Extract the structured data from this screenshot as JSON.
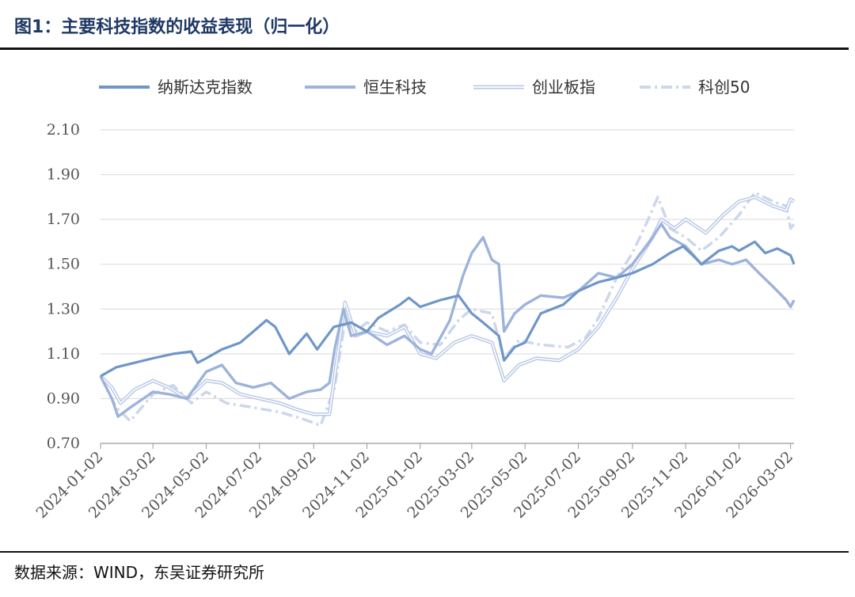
{
  "page": {
    "title": "图1：主要科技指数的收益表现（归一化）",
    "source": "数据来源：WIND，东吴证券研究所"
  },
  "chart_data": {
    "type": "line",
    "title": "图1：主要科技指数的收益表现（归一化）",
    "xlabel": "",
    "ylabel": "",
    "ylim": [
      0.7,
      2.1
    ],
    "yticks": [
      "0.70",
      "0.90",
      "1.10",
      "1.30",
      "1.50",
      "1.70",
      "1.90",
      "2.10"
    ],
    "xlim": [
      "2024-01-02",
      "2026-03-06"
    ],
    "xticks": [
      "2024-01-02",
      "2024-03-02",
      "2024-05-02",
      "2024-07-02",
      "2024-09-02",
      "2024-11-02",
      "2025-01-02",
      "2025-03-02",
      "2025-05-02",
      "2025-07-02",
      "2025-09-02",
      "2025-11-02",
      "2026-01-02",
      "2026-03-02"
    ],
    "grid": "horizontal",
    "legend_position": "top",
    "series": [
      {
        "name": "纳斯达克指数",
        "color": "#6f96c8",
        "style": "solid",
        "points": [
          [
            "2024-01-02",
            1.0
          ],
          [
            "2024-01-20",
            1.04
          ],
          [
            "2024-02-10",
            1.06
          ],
          [
            "2024-03-02",
            1.08
          ],
          [
            "2024-03-25",
            1.1
          ],
          [
            "2024-04-15",
            1.11
          ],
          [
            "2024-04-22",
            1.06
          ],
          [
            "2024-05-02",
            1.08
          ],
          [
            "2024-05-20",
            1.12
          ],
          [
            "2024-06-10",
            1.15
          ],
          [
            "2024-06-25",
            1.2
          ],
          [
            "2024-07-10",
            1.25
          ],
          [
            "2024-07-20",
            1.22
          ],
          [
            "2024-08-05",
            1.1
          ],
          [
            "2024-08-25",
            1.19
          ],
          [
            "2024-09-06",
            1.12
          ],
          [
            "2024-09-25",
            1.22
          ],
          [
            "2024-10-15",
            1.24
          ],
          [
            "2024-11-02",
            1.2
          ],
          [
            "2024-11-15",
            1.26
          ],
          [
            "2024-12-10",
            1.32
          ],
          [
            "2024-12-20",
            1.35
          ],
          [
            "2025-01-02",
            1.31
          ],
          [
            "2025-01-25",
            1.34
          ],
          [
            "2025-02-15",
            1.36
          ],
          [
            "2025-03-02",
            1.28
          ],
          [
            "2025-03-15",
            1.24
          ],
          [
            "2025-04-02",
            1.18
          ],
          [
            "2025-04-08",
            1.07
          ],
          [
            "2025-04-20",
            1.13
          ],
          [
            "2025-05-02",
            1.15
          ],
          [
            "2025-05-20",
            1.28
          ],
          [
            "2025-06-15",
            1.32
          ],
          [
            "2025-07-02",
            1.38
          ],
          [
            "2025-07-25",
            1.42
          ],
          [
            "2025-08-15",
            1.44
          ],
          [
            "2025-09-02",
            1.46
          ],
          [
            "2025-09-25",
            1.5
          ],
          [
            "2025-10-15",
            1.55
          ],
          [
            "2025-10-30",
            1.58
          ],
          [
            "2025-11-10",
            1.54
          ],
          [
            "2025-11-20",
            1.5
          ],
          [
            "2025-12-10",
            1.56
          ],
          [
            "2025-12-25",
            1.58
          ],
          [
            "2026-01-02",
            1.56
          ],
          [
            "2026-01-20",
            1.6
          ],
          [
            "2026-02-01",
            1.55
          ],
          [
            "2026-02-15",
            1.57
          ],
          [
            "2026-03-02",
            1.54
          ],
          [
            "2026-03-06",
            1.5
          ]
        ]
      },
      {
        "name": "恒生科技",
        "color": "#9db3db",
        "style": "solid",
        "points": [
          [
            "2024-01-02",
            1.0
          ],
          [
            "2024-01-15",
            0.9
          ],
          [
            "2024-01-22",
            0.82
          ],
          [
            "2024-02-05",
            0.86
          ],
          [
            "2024-02-20",
            0.9
          ],
          [
            "2024-03-02",
            0.93
          ],
          [
            "2024-03-20",
            0.92
          ],
          [
            "2024-04-10",
            0.9
          ],
          [
            "2024-05-02",
            1.02
          ],
          [
            "2024-05-20",
            1.05
          ],
          [
            "2024-06-05",
            0.97
          ],
          [
            "2024-06-25",
            0.95
          ],
          [
            "2024-07-15",
            0.97
          ],
          [
            "2024-08-05",
            0.9
          ],
          [
            "2024-08-25",
            0.93
          ],
          [
            "2024-09-10",
            0.94
          ],
          [
            "2024-09-20",
            0.97
          ],
          [
            "2024-09-26",
            1.12
          ],
          [
            "2024-10-06",
            1.3
          ],
          [
            "2024-10-15",
            1.18
          ],
          [
            "2024-11-02",
            1.2
          ],
          [
            "2024-11-25",
            1.14
          ],
          [
            "2024-12-15",
            1.18
          ],
          [
            "2025-01-02",
            1.12
          ],
          [
            "2025-01-15",
            1.1
          ],
          [
            "2025-02-05",
            1.25
          ],
          [
            "2025-02-20",
            1.45
          ],
          [
            "2025-03-02",
            1.55
          ],
          [
            "2025-03-15",
            1.62
          ],
          [
            "2025-03-25",
            1.52
          ],
          [
            "2025-04-02",
            1.5
          ],
          [
            "2025-04-08",
            1.2
          ],
          [
            "2025-04-20",
            1.28
          ],
          [
            "2025-05-02",
            1.32
          ],
          [
            "2025-05-20",
            1.36
          ],
          [
            "2025-06-15",
            1.35
          ],
          [
            "2025-07-02",
            1.38
          ],
          [
            "2025-07-25",
            1.46
          ],
          [
            "2025-08-15",
            1.44
          ],
          [
            "2025-09-02",
            1.5
          ],
          [
            "2025-09-25",
            1.62
          ],
          [
            "2025-10-05",
            1.68
          ],
          [
            "2025-10-15",
            1.62
          ],
          [
            "2025-11-02",
            1.58
          ],
          [
            "2025-11-20",
            1.5
          ],
          [
            "2025-12-10",
            1.52
          ],
          [
            "2025-12-25",
            1.5
          ],
          [
            "2026-01-10",
            1.52
          ],
          [
            "2026-01-25",
            1.46
          ],
          [
            "2026-02-10",
            1.4
          ],
          [
            "2026-02-25",
            1.34
          ],
          [
            "2026-03-02",
            1.31
          ],
          [
            "2026-03-06",
            1.34
          ]
        ]
      },
      {
        "name": "创业板指",
        "color": "#b9c8e6",
        "style": "double",
        "points": [
          [
            "2024-01-02",
            1.0
          ],
          [
            "2024-01-15",
            0.95
          ],
          [
            "2024-01-25",
            0.88
          ],
          [
            "2024-02-10",
            0.94
          ],
          [
            "2024-03-02",
            0.98
          ],
          [
            "2024-03-20",
            0.95
          ],
          [
            "2024-04-10",
            0.9
          ],
          [
            "2024-05-02",
            0.98
          ],
          [
            "2024-05-20",
            0.97
          ],
          [
            "2024-06-10",
            0.92
          ],
          [
            "2024-07-02",
            0.9
          ],
          [
            "2024-07-25",
            0.88
          ],
          [
            "2024-08-15",
            0.85
          ],
          [
            "2024-09-02",
            0.83
          ],
          [
            "2024-09-20",
            0.83
          ],
          [
            "2024-09-26",
            1.0
          ],
          [
            "2024-10-08",
            1.33
          ],
          [
            "2024-10-20",
            1.18
          ],
          [
            "2024-11-02",
            1.2
          ],
          [
            "2024-11-25",
            1.18
          ],
          [
            "2024-12-15",
            1.22
          ],
          [
            "2025-01-02",
            1.1
          ],
          [
            "2025-01-20",
            1.08
          ],
          [
            "2025-02-10",
            1.15
          ],
          [
            "2025-03-02",
            1.18
          ],
          [
            "2025-03-25",
            1.15
          ],
          [
            "2025-04-08",
            0.98
          ],
          [
            "2025-04-25",
            1.05
          ],
          [
            "2025-05-15",
            1.08
          ],
          [
            "2025-06-10",
            1.07
          ],
          [
            "2025-07-02",
            1.12
          ],
          [
            "2025-07-25",
            1.22
          ],
          [
            "2025-08-15",
            1.35
          ],
          [
            "2025-09-02",
            1.48
          ],
          [
            "2025-09-25",
            1.62
          ],
          [
            "2025-10-05",
            1.7
          ],
          [
            "2025-10-20",
            1.66
          ],
          [
            "2025-11-02",
            1.7
          ],
          [
            "2025-11-25",
            1.64
          ],
          [
            "2025-12-15",
            1.72
          ],
          [
            "2026-01-02",
            1.78
          ],
          [
            "2026-01-20",
            1.8
          ],
          [
            "2026-02-10",
            1.76
          ],
          [
            "2026-02-25",
            1.74
          ],
          [
            "2026-03-02",
            1.79
          ],
          [
            "2026-03-06",
            1.78
          ]
        ]
      },
      {
        "name": "科创50",
        "color": "#ccd7ea",
        "style": "dashdot",
        "points": [
          [
            "2024-01-02",
            1.0
          ],
          [
            "2024-01-20",
            0.86
          ],
          [
            "2024-02-05",
            0.8
          ],
          [
            "2024-03-02",
            0.92
          ],
          [
            "2024-03-25",
            0.96
          ],
          [
            "2024-04-15",
            0.88
          ],
          [
            "2024-05-02",
            0.93
          ],
          [
            "2024-05-25",
            0.88
          ],
          [
            "2024-06-25",
            0.86
          ],
          [
            "2024-07-25",
            0.84
          ],
          [
            "2024-08-20",
            0.81
          ],
          [
            "2024-09-10",
            0.78
          ],
          [
            "2024-09-26",
            0.95
          ],
          [
            "2024-10-08",
            1.25
          ],
          [
            "2024-10-20",
            1.2
          ],
          [
            "2024-11-02",
            1.24
          ],
          [
            "2024-11-25",
            1.2
          ],
          [
            "2024-12-15",
            1.23
          ],
          [
            "2025-01-02",
            1.15
          ],
          [
            "2025-01-25",
            1.14
          ],
          [
            "2025-02-15",
            1.25
          ],
          [
            "2025-03-02",
            1.3
          ],
          [
            "2025-03-25",
            1.28
          ],
          [
            "2025-04-08",
            1.08
          ],
          [
            "2025-04-25",
            1.16
          ],
          [
            "2025-05-20",
            1.14
          ],
          [
            "2025-06-20",
            1.13
          ],
          [
            "2025-07-10",
            1.17
          ],
          [
            "2025-07-25",
            1.26
          ],
          [
            "2025-08-15",
            1.44
          ],
          [
            "2025-09-02",
            1.55
          ],
          [
            "2025-09-20",
            1.7
          ],
          [
            "2025-10-01",
            1.8
          ],
          [
            "2025-10-15",
            1.66
          ],
          [
            "2025-11-02",
            1.62
          ],
          [
            "2025-11-20",
            1.56
          ],
          [
            "2025-12-10",
            1.62
          ],
          [
            "2026-01-02",
            1.72
          ],
          [
            "2026-01-20",
            1.82
          ],
          [
            "2026-02-10",
            1.78
          ],
          [
            "2026-02-25",
            1.76
          ],
          [
            "2026-03-02",
            1.66
          ],
          [
            "2026-03-06",
            1.68
          ]
        ]
      }
    ]
  }
}
